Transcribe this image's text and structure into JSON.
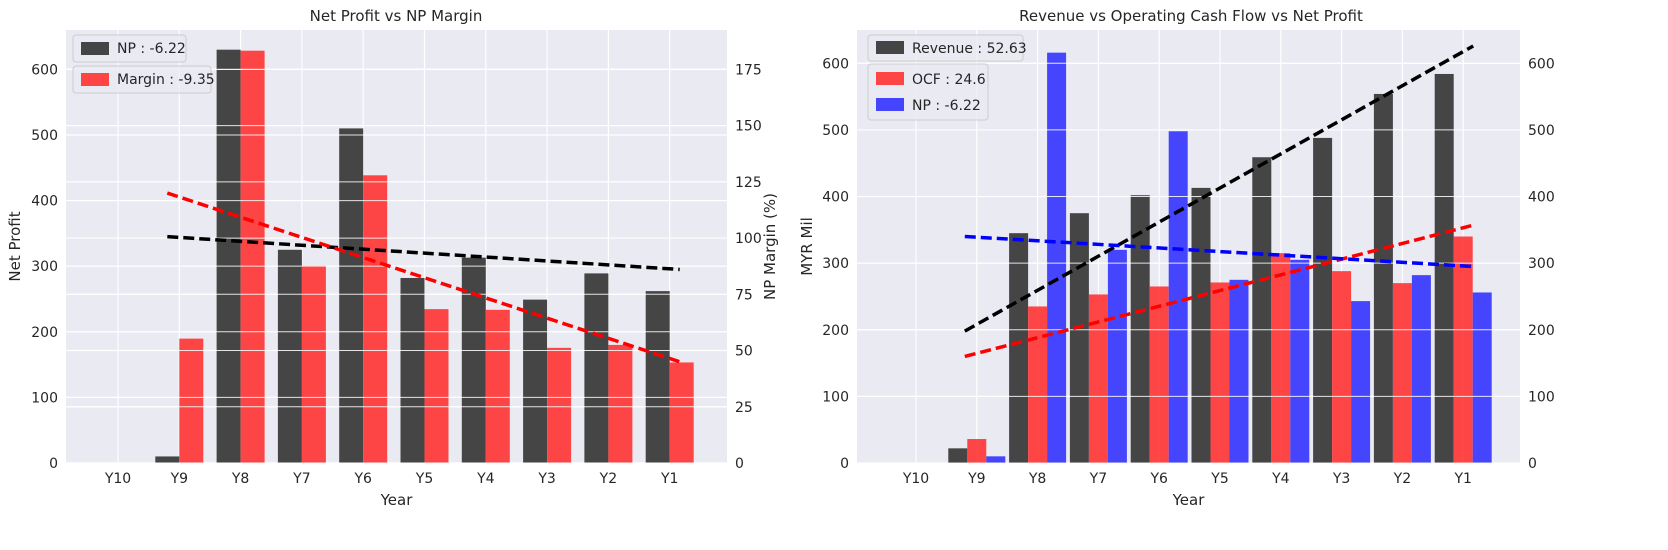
{
  "chart_data": [
    {
      "type": "bar",
      "title": "Net Profit vs NP Margin",
      "xlabel": "Year",
      "ylabel": "Net Profit",
      "ylabel_right": "NP Margin (%)",
      "categories": [
        "Y10",
        "Y9",
        "Y8",
        "Y7",
        "Y6",
        "Y5",
        "Y4",
        "Y3",
        "Y2",
        "Y1"
      ],
      "ylim": [
        0,
        660
      ],
      "yticks": [
        0,
        100,
        200,
        300,
        400,
        500,
        600
      ],
      "ylim_right": [
        0,
        192.5
      ],
      "yticks_right": [
        0,
        25,
        50,
        75,
        100,
        125,
        150,
        175
      ],
      "grid": true,
      "legend_position": "top-left",
      "series": [
        {
          "name": "NP : -6.22",
          "axis": "left",
          "color": "#333333",
          "values": [
            0,
            10,
            630,
            325,
            510,
            282,
            313,
            249,
            289,
            262
          ]
        },
        {
          "name": "Margin : -9.35",
          "axis": "right",
          "color": "#ff3333",
          "values": [
            0,
            55.3,
            183.3,
            87.7,
            127.9,
            68.4,
            68.1,
            51.2,
            52.5,
            44.7
          ]
        }
      ],
      "trend_lines": [
        {
          "series": "NP : -6.22",
          "axis": "left",
          "color": "#000000",
          "from": "Y9",
          "to": "Y1",
          "start": 345,
          "end": 295
        },
        {
          "series": "Margin : -9.35",
          "axis": "right",
          "color": "#ff0000",
          "from": "Y9",
          "to": "Y1",
          "start": 120,
          "end": 45
        }
      ]
    },
    {
      "type": "bar",
      "title": "Revenue vs Operating Cash Flow vs Net Profit",
      "xlabel": "Year",
      "ylabel": "MYR Mil",
      "categories": [
        "Y10",
        "Y9",
        "Y8",
        "Y7",
        "Y6",
        "Y5",
        "Y4",
        "Y3",
        "Y2",
        "Y1"
      ],
      "ylim": [
        0,
        650
      ],
      "yticks": [
        0,
        100,
        200,
        300,
        400,
        500,
        600
      ],
      "yticks_right": [
        0,
        100,
        200,
        300,
        400,
        500,
        600
      ],
      "grid": true,
      "legend_position": "top-left",
      "series": [
        {
          "name": "Revenue : 52.63",
          "color": "#333333",
          "values": [
            0,
            22,
            345,
            375,
            402,
            413,
            459,
            488,
            554,
            584
          ]
        },
        {
          "name": "OCF : 24.6",
          "color": "#ff3333",
          "values": [
            0,
            36,
            235,
            253,
            265,
            271,
            315,
            288,
            270,
            340
          ]
        },
        {
          "name": "NP : -6.22",
          "color": "#3333ff",
          "values": [
            0,
            10,
            616,
            320,
            498,
            275,
            305,
            243,
            282,
            256
          ]
        }
      ],
      "trend_lines": [
        {
          "series": "Revenue : 52.63",
          "color": "#000000",
          "from": "Y9",
          "to": "Y1",
          "start": 198,
          "end": 626
        },
        {
          "series": "OCF : 24.6",
          "color": "#ff0000",
          "from": "Y9",
          "to": "Y1",
          "start": 160,
          "end": 357
        },
        {
          "series": "NP : -6.22",
          "color": "#0000ff",
          "from": "Y9",
          "to": "Y1",
          "start": 340,
          "end": 295
        }
      ]
    }
  ]
}
